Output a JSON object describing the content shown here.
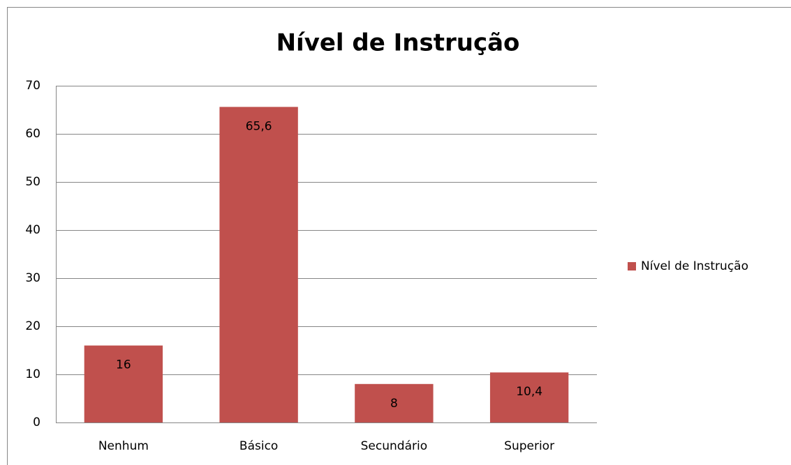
{
  "chart_data": {
    "type": "bar",
    "title": "Nível de Instrução",
    "categories": [
      "Nenhum",
      "Básico",
      "Secundário",
      "Superior"
    ],
    "series": [
      {
        "name": "Nível de Instrução",
        "color": "#c0504d",
        "values": [
          16,
          65.6,
          8,
          10.4
        ],
        "value_labels": [
          "16",
          "65,6",
          "8",
          "10,4"
        ]
      }
    ],
    "ylim": [
      0,
      70
    ],
    "yticks": [
      0,
      10,
      20,
      30,
      40,
      50,
      60,
      70
    ],
    "grid": true,
    "legend": "right"
  }
}
